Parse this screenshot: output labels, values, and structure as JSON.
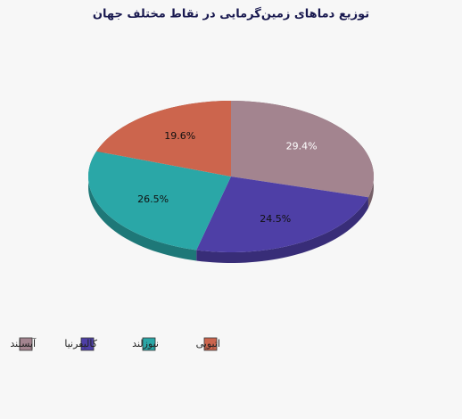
{
  "chart_data": {
    "type": "pie",
    "title": "توزیع دماهای زمین‌گرمایی در نقاط مختلف جهان",
    "categories": [
      "آیسلند",
      "کالیفرنیا",
      "نیوزلند",
      "اتیوپی"
    ],
    "values": [
      29.4,
      24.5,
      26.5,
      19.6
    ],
    "value_labels": [
      "29.4%",
      "24.5%",
      "26.5%",
      "19.6%"
    ],
    "colors": [
      "#a3848f",
      "#4e3fa6",
      "#2aa7a7",
      "#cc654d"
    ]
  }
}
